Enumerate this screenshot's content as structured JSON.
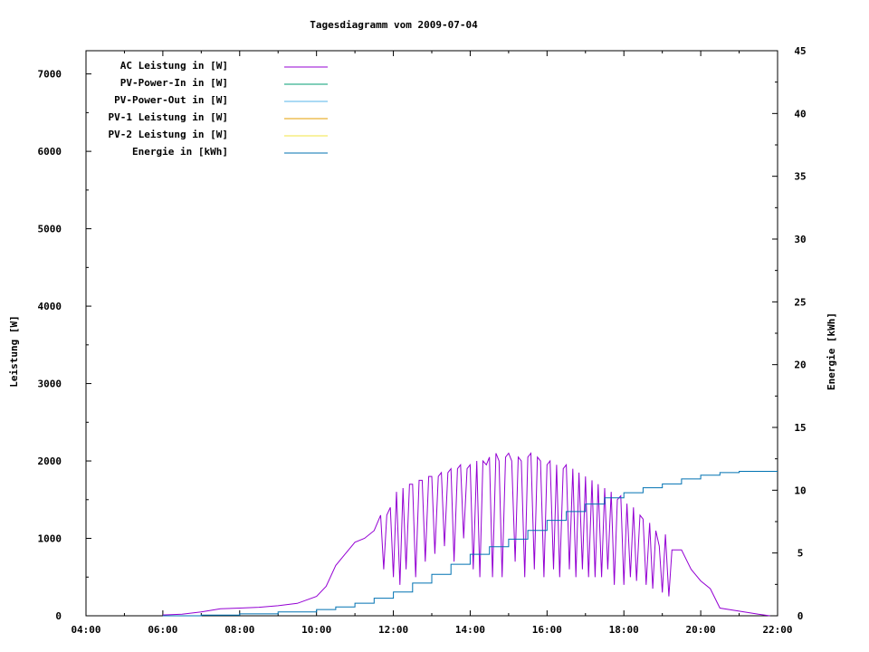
{
  "chart_data": {
    "type": "line",
    "title": "Tagesdiagramm vom 2009-07-04",
    "xlabel": "",
    "ylabel": "Leistung [W]",
    "y2label": "Energie [kWh]",
    "xlim": [
      4,
      22
    ],
    "ylim": [
      0,
      7300
    ],
    "y2lim": [
      0,
      45
    ],
    "x_ticks": [
      "04:00",
      "06:00",
      "08:00",
      "10:00",
      "12:00",
      "14:00",
      "16:00",
      "18:00",
      "20:00",
      "22:00"
    ],
    "y_ticks": [
      0,
      1000,
      2000,
      3000,
      4000,
      5000,
      6000,
      7000
    ],
    "y2_ticks": [
      0,
      5,
      10,
      15,
      20,
      25,
      30,
      35,
      40,
      45
    ],
    "legend_position": "top-left",
    "legend": [
      {
        "label": "AC Leistung in [W]",
        "color": "#9400d3"
      },
      {
        "label": "PV-Power-In in [W]",
        "color": "#009e73"
      },
      {
        "label": "PV-Power-Out in [W]",
        "color": "#56b4e9"
      },
      {
        "label": "PV-1 Leistung in [W]",
        "color": "#e69f00"
      },
      {
        "label": "PV-2 Leistung in [W]",
        "color": "#f0e442"
      },
      {
        "label": "Energie in [kWh]",
        "color": "#0072b2"
      }
    ],
    "series": [
      {
        "name": "AC Leistung in [W]",
        "axis": "left",
        "color": "#9400d3",
        "x": [
          6.0,
          6.5,
          7.0,
          7.5,
          8.0,
          8.5,
          9.0,
          9.5,
          10.0,
          10.25,
          10.5,
          10.75,
          11.0,
          11.25,
          11.5,
          11.67,
          11.75,
          11.83,
          11.92,
          12.0,
          12.08,
          12.17,
          12.25,
          12.33,
          12.42,
          12.5,
          12.58,
          12.67,
          12.75,
          12.83,
          12.92,
          13.0,
          13.08,
          13.17,
          13.25,
          13.33,
          13.42,
          13.5,
          13.58,
          13.67,
          13.75,
          13.83,
          13.92,
          14.0,
          14.08,
          14.17,
          14.25,
          14.33,
          14.42,
          14.5,
          14.58,
          14.67,
          14.75,
          14.83,
          14.92,
          15.0,
          15.08,
          15.17,
          15.25,
          15.33,
          15.42,
          15.5,
          15.58,
          15.67,
          15.75,
          15.83,
          15.92,
          16.0,
          16.08,
          16.17,
          16.25,
          16.33,
          16.42,
          16.5,
          16.58,
          16.67,
          16.75,
          16.83,
          16.92,
          17.0,
          17.08,
          17.17,
          17.25,
          17.33,
          17.42,
          17.5,
          17.58,
          17.67,
          17.75,
          17.83,
          17.92,
          18.0,
          18.08,
          18.17,
          18.25,
          18.33,
          18.42,
          18.5,
          18.58,
          18.67,
          18.75,
          18.83,
          18.92,
          19.0,
          19.08,
          19.17,
          19.25,
          19.5,
          19.75,
          20.0,
          20.25,
          20.5,
          21.0,
          21.5,
          21.8
        ],
        "values": [
          10,
          20,
          50,
          90,
          100,
          110,
          130,
          160,
          250,
          380,
          650,
          800,
          950,
          1000,
          1100,
          1300,
          600,
          1300,
          1400,
          500,
          1600,
          400,
          1650,
          600,
          1700,
          1700,
          500,
          1750,
          1750,
          700,
          1800,
          1800,
          800,
          1800,
          1850,
          900,
          1850,
          1900,
          700,
          1900,
          1950,
          1000,
          1900,
          1950,
          600,
          2000,
          500,
          2000,
          1950,
          2050,
          500,
          2100,
          2000,
          500,
          2050,
          2100,
          2000,
          700,
          2050,
          2000,
          500,
          2050,
          2100,
          600,
          2050,
          2000,
          500,
          1950,
          2000,
          600,
          1950,
          500,
          1900,
          1950,
          600,
          1900,
          500,
          1850,
          600,
          1800,
          500,
          1750,
          500,
          1700,
          500,
          1650,
          600,
          1600,
          400,
          1500,
          1550,
          400,
          1450,
          500,
          1400,
          450,
          1300,
          1250,
          400,
          1200,
          350,
          1100,
          900,
          300,
          1050,
          250,
          850,
          850,
          600,
          450,
          350,
          100,
          60,
          20,
          0
        ]
      },
      {
        "name": "Energie in [kWh]",
        "axis": "right",
        "color": "#0072b2",
        "x": [
          6.0,
          7.0,
          8.0,
          9.0,
          10.0,
          10.5,
          11.0,
          11.5,
          12.0,
          12.5,
          13.0,
          13.5,
          14.0,
          14.5,
          15.0,
          15.5,
          16.0,
          16.5,
          17.0,
          17.5,
          18.0,
          18.5,
          19.0,
          19.5,
          20.0,
          20.5,
          21.0,
          21.5,
          22.0
        ],
        "values": [
          0.0,
          0.05,
          0.15,
          0.3,
          0.5,
          0.7,
          1.0,
          1.4,
          1.9,
          2.6,
          3.3,
          4.1,
          4.9,
          5.5,
          6.1,
          6.8,
          7.6,
          8.3,
          8.9,
          9.4,
          9.8,
          10.2,
          10.5,
          10.9,
          11.2,
          11.4,
          11.5,
          11.5,
          11.5
        ]
      }
    ]
  }
}
